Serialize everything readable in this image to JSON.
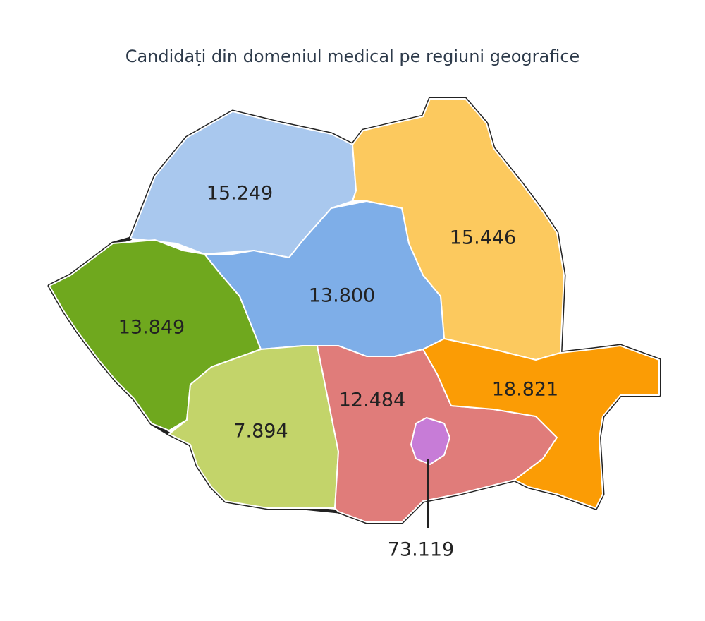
{
  "title": "Candidați din domeniul medical pe regiuni geografice",
  "regions": [
    {
      "label": "15.249",
      "color": "#a9c8ee"
    },
    {
      "label": "15.446",
      "color": "#fcc95e"
    },
    {
      "label": "13.800",
      "color": "#7eaee8"
    },
    {
      "label": "13.849",
      "color": "#6fa81e"
    },
    {
      "label": "7.894",
      "color": "#c3d46a"
    },
    {
      "label": "12.484",
      "color": "#e07c7a"
    },
    {
      "label": "18.821",
      "color": "#fb9c05"
    },
    {
      "label": "73.119",
      "color": "#c77cd7"
    }
  ]
}
